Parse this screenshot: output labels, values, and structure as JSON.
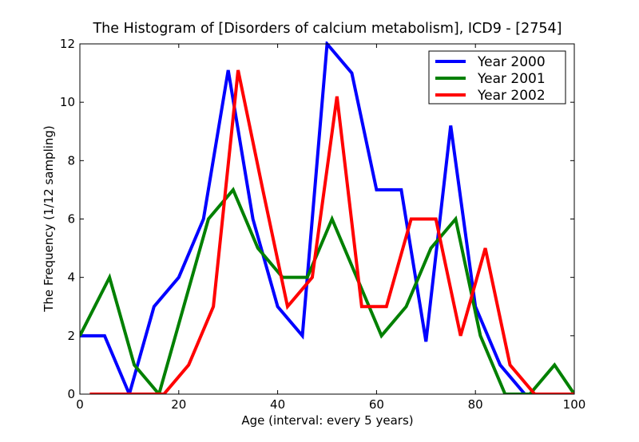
{
  "chart_data": {
    "type": "line",
    "title": "The Histogram of [Disorders of calcium metabolism], ICD9 - [2754]",
    "xlabel": "Age (interval: every 5 years)",
    "ylabel": "The Frequency (1/12 sampling)",
    "xlim": [
      0,
      100
    ],
    "ylim": [
      0,
      12
    ],
    "xticks": [
      0,
      20,
      40,
      60,
      80,
      100
    ],
    "yticks": [
      0,
      2,
      4,
      6,
      8,
      10,
      12
    ],
    "grid": false,
    "legend_position": "top-right",
    "series": [
      {
        "name": "Year 2000",
        "color": "#0000ff",
        "x": [
          0,
          5,
          10,
          15,
          20,
          25,
          30,
          35,
          40,
          45,
          50,
          55,
          60,
          65,
          70,
          75,
          80,
          85,
          90,
          95,
          100
        ],
        "y": [
          2,
          2,
          0,
          3,
          4,
          6,
          11.1,
          6,
          3,
          2,
          12,
          11,
          7,
          7,
          1.8,
          9.2,
          3,
          1,
          0,
          0,
          0
        ]
      },
      {
        "name": "Year 2001",
        "color": "#008000",
        "x": [
          0,
          6,
          11,
          16,
          21,
          26,
          31,
          36,
          41,
          46,
          51,
          56,
          61,
          66,
          71,
          76,
          81,
          86,
          91,
          96,
          100
        ],
        "y": [
          2,
          4,
          1,
          0,
          3,
          6,
          7,
          5,
          4,
          4,
          6,
          4,
          2,
          3,
          5,
          6,
          2,
          0,
          0,
          1,
          0
        ]
      },
      {
        "name": "Year 2002",
        "color": "#ff0000",
        "x": [
          2,
          7,
          12,
          17,
          22,
          27,
          32,
          37,
          42,
          47,
          52,
          57,
          62,
          67,
          72,
          77,
          82,
          87,
          92,
          97,
          100
        ],
        "y": [
          0,
          0,
          0,
          0,
          1,
          3,
          11.1,
          7,
          3,
          4,
          10.2,
          3,
          3,
          6,
          6,
          2,
          5,
          1,
          0,
          0,
          0
        ]
      }
    ]
  }
}
